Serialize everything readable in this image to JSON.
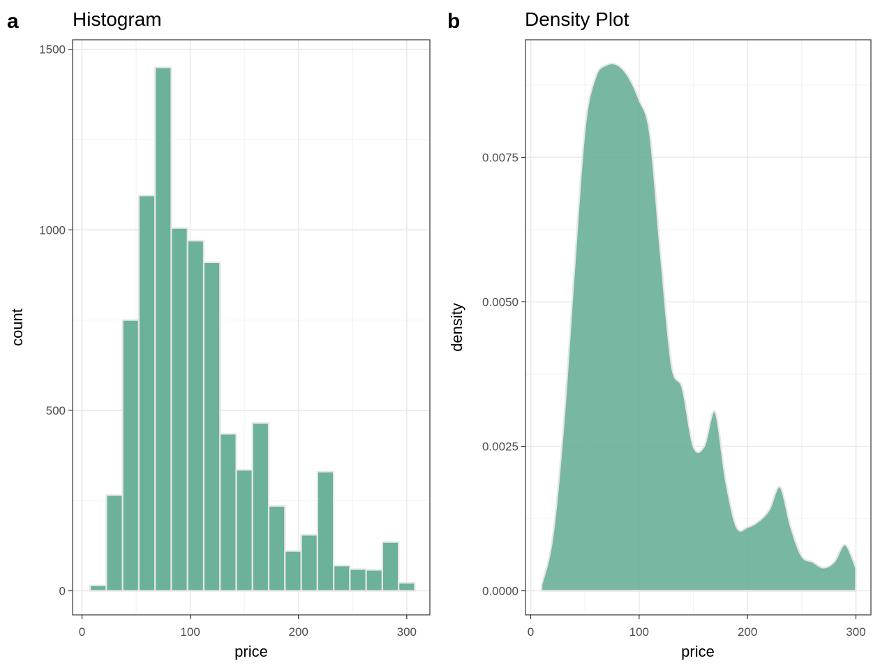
{
  "colors": {
    "fill": "#69AF98",
    "outline": "#E6E6E6",
    "grid_major": "#EBEBEB",
    "grid_minor": "#F2F2F2",
    "frame": "#333333"
  },
  "chart_data": [
    {
      "type": "bar",
      "tag": "a",
      "title": "Histogram",
      "xlabel": "price",
      "ylabel": "count",
      "xlim": [
        0,
        310
      ],
      "ylim": [
        0,
        1500
      ],
      "xticks": [
        0,
        100,
        200,
        300
      ],
      "yticks": [
        0,
        500,
        1000,
        1500
      ],
      "grid": true,
      "bin_width": 15,
      "bins": [
        {
          "x": 15,
          "count": 15
        },
        {
          "x": 30,
          "count": 265
        },
        {
          "x": 45,
          "count": 750
        },
        {
          "x": 60,
          "count": 1095
        },
        {
          "x": 75,
          "count": 1450
        },
        {
          "x": 90,
          "count": 1005
        },
        {
          "x": 105,
          "count": 970
        },
        {
          "x": 120,
          "count": 910
        },
        {
          "x": 135,
          "count": 435
        },
        {
          "x": 150,
          "count": 335
        },
        {
          "x": 165,
          "count": 465
        },
        {
          "x": 180,
          "count": 235
        },
        {
          "x": 195,
          "count": 110
        },
        {
          "x": 210,
          "count": 155
        },
        {
          "x": 225,
          "count": 330
        },
        {
          "x": 240,
          "count": 70
        },
        {
          "x": 255,
          "count": 60
        },
        {
          "x": 270,
          "count": 58
        },
        {
          "x": 285,
          "count": 135
        },
        {
          "x": 300,
          "count": 22
        }
      ]
    },
    {
      "type": "area",
      "tag": "b",
      "title": "Density Plot",
      "xlabel": "price",
      "ylabel": "density",
      "xlim": [
        0,
        300
      ],
      "ylim": [
        0,
        0.009
      ],
      "xticks": [
        0,
        100,
        200,
        300
      ],
      "yticks": [
        0.0,
        0.0025,
        0.005,
        0.0075
      ],
      "ytick_labels": [
        "0.0000",
        "0.0025",
        "0.0050",
        "0.0075"
      ],
      "grid": true,
      "x": [
        10,
        20,
        30,
        40,
        50,
        60,
        70,
        80,
        90,
        100,
        110,
        120,
        130,
        140,
        150,
        160,
        170,
        180,
        190,
        200,
        210,
        220,
        230,
        240,
        250,
        260,
        270,
        280,
        290,
        300
      ],
      "y": [
        0.0001,
        0.0009,
        0.0028,
        0.0055,
        0.008,
        0.0089,
        0.0091,
        0.0091,
        0.0089,
        0.0085,
        0.0079,
        0.0058,
        0.0039,
        0.0035,
        0.0025,
        0.0025,
        0.0031,
        0.0019,
        0.0011,
        0.0011,
        0.0012,
        0.0014,
        0.0018,
        0.0011,
        0.0006,
        0.0005,
        0.0004,
        0.0005,
        0.0008,
        0.0004
      ]
    }
  ]
}
